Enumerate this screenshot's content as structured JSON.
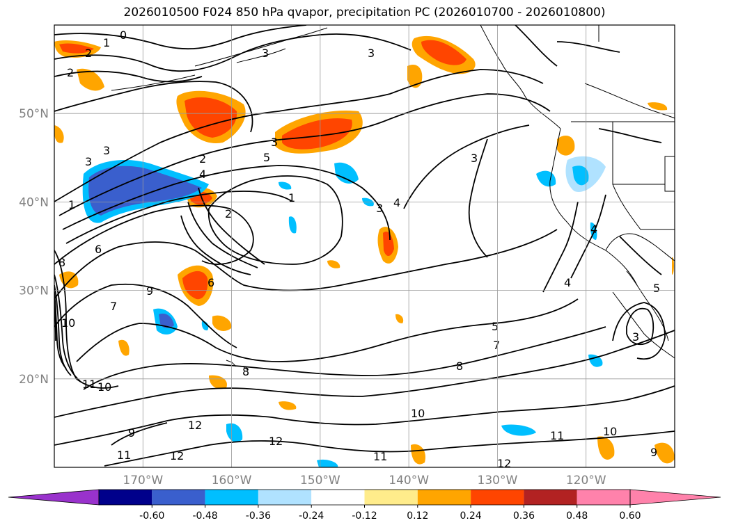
{
  "title": "2026010500 F024 850 hPa qvapor, precipitation PC (2026010700 - 2026010800)",
  "lat_labels": [
    "50°N",
    "40°N",
    "30°N",
    "20°N"
  ],
  "lat_values": [
    50,
    40,
    30,
    20
  ],
  "lon_labels": [
    "170°W",
    "160°W",
    "150°W",
    "140°W",
    "130°W",
    "120°W"
  ],
  "lon_values": [
    -170,
    -160,
    -150,
    -140,
    -130,
    -120
  ],
  "extent": {
    "lon_min": -180,
    "lon_max": -110,
    "lat_min": 10,
    "lat_max": 60
  },
  "contour_labels": [
    "0",
    "1",
    "2",
    "2",
    "2",
    "3",
    "3",
    "3",
    "3",
    "3",
    "4",
    "5",
    "1",
    "2",
    "3",
    "4",
    "3",
    "4",
    "5",
    "6",
    "7",
    "8",
    "9",
    "10",
    "11",
    "7",
    "8",
    "9",
    "10",
    "11",
    "12",
    "12",
    "12",
    "10",
    "11",
    "12",
    "10",
    "11",
    "3",
    "4",
    "5",
    "6",
    "8",
    "9",
    "1"
  ],
  "colorbar": {
    "ticks": [
      "-0.60",
      "-0.48",
      "-0.36",
      "-0.24",
      "-0.12",
      "0.12",
      "0.24",
      "0.36",
      "0.48",
      "0.60"
    ],
    "colors": [
      "#9932cc",
      "#00008b",
      "#3a5fcd",
      "#00bfff",
      "#b0e2ff",
      "#ffffff",
      "#ffec8b",
      "#ffa500",
      "#ff4500",
      "#b22222",
      "#ff82ab",
      "#ff82ab"
    ]
  }
}
